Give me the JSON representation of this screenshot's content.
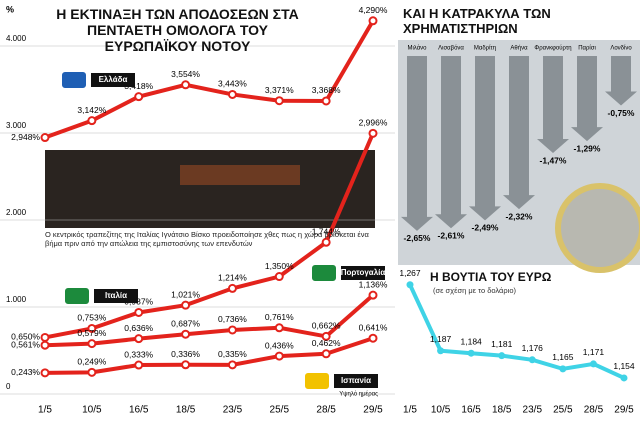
{
  "chart_data": [
    {
      "type": "line",
      "title": "Η ΕΚΤΙΝΑΞΗ ΤΩΝ ΑΠΟΔΟΣΕΩΝ ΣΤΑ ΠΕΝΤΑΕΤΗ ΟΜΟΛΟΓΑ ΤΟΥ ΕΥΡΩΠΑΪΚΟΥ ΝΟΤΟΥ",
      "y_label": "%",
      "caption": "Ο κεντρικός τραπεζίτης της Ιταλίας Ιγνάτσιο Βίσκο προειδοποίησε χθες πως η χώρα βρίσκεται ένα βήμα πριν από την απώλεια της εμπιστοσύνης των επενδυτών",
      "annotation": "Υψηλό ημέρας",
      "categories": [
        "1/5",
        "10/5",
        "16/5",
        "18/5",
        "23/5",
        "25/5",
        "28/5",
        "29/5"
      ],
      "ylim": [
        0,
        4.5
      ],
      "yticks": [
        {
          "value": 0,
          "label": "0"
        },
        {
          "value": 1,
          "label": "1.000"
        },
        {
          "value": 2,
          "label": "2.000"
        },
        {
          "value": 3,
          "label": "3.000"
        },
        {
          "value": 4,
          "label": "4.000"
        }
      ],
      "grid": true,
      "series": [
        {
          "name": "Ελλάδα",
          "color": "#e3231c",
          "values": [
            2.948,
            3.142,
            3.418,
            3.554,
            3.443,
            3.371,
            3.368,
            4.29
          ],
          "value_labels": [
            "2,948%",
            "3,142%",
            "3,418%",
            "3,554%",
            "3,443%",
            "3,371%",
            "3,368%",
            "4,290%"
          ]
        },
        {
          "name": "Πορτογαλία",
          "color": "#e3231c",
          "values": [
            0.65,
            0.753,
            0.937,
            1.021,
            1.214,
            1.35,
            1.744,
            2.996
          ],
          "value_labels": [
            "0,650%",
            "0,753%",
            "0,937%",
            "1,021%",
            "1,214%",
            "1,350%",
            "1,744%",
            "2,996%"
          ]
        },
        {
          "name": "Ιταλία",
          "color": "#e3231c",
          "values": [
            0.561,
            0.579,
            0.636,
            0.687,
            0.736,
            0.761,
            0.662,
            1.136
          ],
          "value_labels": [
            "0,561%",
            "0,579%",
            "0,636%",
            "0,687%",
            "0,736%",
            "0,761%",
            "0,662%",
            "1,136%"
          ]
        },
        {
          "name": "Ισπανία",
          "color": "#e3231c",
          "values": [
            0.243,
            0.249,
            0.333,
            0.336,
            0.335,
            0.436,
            0.462,
            0.641
          ],
          "value_labels": [
            "0,243%",
            "0,249%",
            "0,333%",
            "0,336%",
            "0,335%",
            "0,436%",
            "0,462%",
            "0,641%"
          ]
        }
      ]
    },
    {
      "type": "bar",
      "title": "ΚΑΙ Η ΚΑΤΡΑΚΥΛΑ ΤΩΝ ΧΡΗΜΑΤΙΣΤΗΡΙΩΝ",
      "categories": [
        "Μιλάνο",
        "Λισαβόνα",
        "Μαδρίτη",
        "Αθήνα",
        "Φρανκφούρτη",
        "Παρίσι",
        "Λονδίνο"
      ],
      "values": [
        -2.65,
        -2.61,
        -2.49,
        -2.32,
        -1.47,
        -1.29,
        -0.75
      ],
      "value_labels": [
        "-2,65%",
        "-2,61%",
        "-2,49%",
        "-2,32%",
        "-1,47%",
        "-1,29%",
        "-0,75%"
      ],
      "color": "#8a9196"
    },
    {
      "type": "line",
      "title": "Η ΒΟΥΤΙΑ ΤΟΥ ΕΥΡΩ",
      "subtitle": "(σε σχέση με το δολάριο)",
      "categories": [
        "1/5",
        "10/5",
        "16/5",
        "18/5",
        "23/5",
        "25/5",
        "28/5",
        "29/5"
      ],
      "ylim": [
        1.14,
        1.28
      ],
      "series": [
        {
          "name": "ευρώ",
          "color": "#3fd3e6",
          "values": [
            1.267,
            1.187,
            1.184,
            1.181,
            1.176,
            1.165,
            1.171,
            1.154
          ],
          "value_labels": [
            "1,267",
            "1,187",
            "1,184",
            "1,181",
            "1,176",
            "1,165",
            "1,171",
            "1,154"
          ]
        }
      ]
    }
  ]
}
